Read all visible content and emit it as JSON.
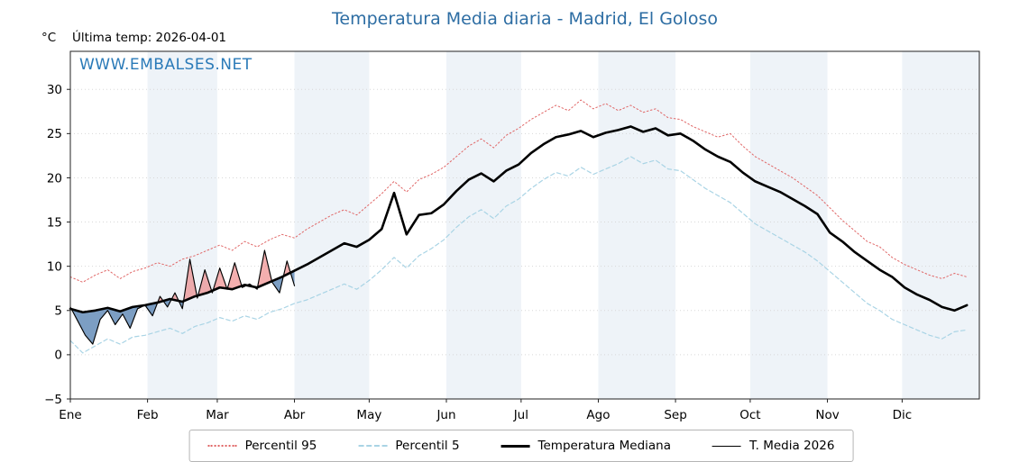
{
  "header": {
    "title": "Temperatura Media diaria - Madrid, El Goloso",
    "title_color": "#2d6da3",
    "unit_label": "°C",
    "last_temp_label": "Última temp: 2026-04-01"
  },
  "watermark": {
    "text": "WWW.EMBALSES.NET",
    "color": "#2a7ab8"
  },
  "legend": {
    "items": [
      {
        "label": "Percentil 95"
      },
      {
        "label": "Percentil 5"
      },
      {
        "label": "Temperatura Mediana"
      },
      {
        "label": "T. Media 2026"
      }
    ]
  },
  "chart_data": {
    "type": "line",
    "title": "Temperatura Media diaria - Madrid, El Goloso",
    "xlabel": "",
    "ylabel": "°C",
    "xlim": [
      1,
      366
    ],
    "ylim": [
      -5,
      34.3
    ],
    "yticks": [
      -5,
      0,
      5,
      10,
      15,
      20,
      25,
      30
    ],
    "ytick_labels": [
      "−5",
      "0",
      "5",
      "10",
      "15",
      "20",
      "25",
      "30"
    ],
    "month_labels": [
      "Ene",
      "Feb",
      "Mar",
      "Abr",
      "May",
      "Jun",
      "Jul",
      "Ago",
      "Sep",
      "Oct",
      "Nov",
      "Dic"
    ],
    "month_start_days": [
      1,
      32,
      60,
      91,
      121,
      152,
      182,
      213,
      244,
      274,
      305,
      335
    ],
    "shaded_month_indices": [
      1,
      3,
      5,
      7,
      9,
      11
    ],
    "band_color": "#eef3f8",
    "grid_color": "#d8d8d8",
    "fill_above_color": "rgba(235,110,110,0.55)",
    "fill_below_color": "rgba(80,125,175,0.75)",
    "x_days": [
      1,
      6,
      11,
      16,
      21,
      26,
      31,
      36,
      41,
      46,
      51,
      56,
      61,
      66,
      71,
      76,
      81,
      86,
      91,
      96,
      101,
      106,
      111,
      116,
      121,
      126,
      131,
      136,
      141,
      146,
      151,
      156,
      161,
      166,
      171,
      176,
      181,
      186,
      191,
      196,
      201,
      206,
      211,
      216,
      221,
      226,
      231,
      236,
      241,
      246,
      251,
      256,
      261,
      266,
      271,
      276,
      281,
      286,
      291,
      296,
      301,
      306,
      311,
      316,
      321,
      326,
      331,
      336,
      341,
      346,
      351,
      356,
      361
    ],
    "series": [
      {
        "name": "Percentil 95",
        "style": "dotted",
        "color": "#e06666",
        "values": [
          8.8,
          8.2,
          9.0,
          9.6,
          8.6,
          9.4,
          9.8,
          10.4,
          10.0,
          10.8,
          11.2,
          11.8,
          12.4,
          11.8,
          12.8,
          12.2,
          13.0,
          13.6,
          13.2,
          14.2,
          15.0,
          15.8,
          16.4,
          15.8,
          17.0,
          18.2,
          19.6,
          18.4,
          19.8,
          20.4,
          21.2,
          22.4,
          23.6,
          24.4,
          23.4,
          24.8,
          25.6,
          26.6,
          27.4,
          28.2,
          27.6,
          28.8,
          27.8,
          28.4,
          27.6,
          28.2,
          27.4,
          27.8,
          26.8,
          26.6,
          25.8,
          25.2,
          24.6,
          25.0,
          23.6,
          22.4,
          21.6,
          20.8,
          20.0,
          19.0,
          18.0,
          16.6,
          15.2,
          14.0,
          12.8,
          12.2,
          11.0,
          10.2,
          9.6,
          9.0,
          8.6,
          9.2,
          8.8
        ]
      },
      {
        "name": "Percentil 5",
        "style": "dashed",
        "color": "#a9d4e5",
        "values": [
          1.6,
          0.2,
          1.0,
          1.8,
          1.2,
          2.0,
          2.2,
          2.6,
          3.0,
          2.4,
          3.2,
          3.6,
          4.2,
          3.8,
          4.4,
          4.0,
          4.8,
          5.2,
          5.8,
          6.2,
          6.8,
          7.4,
          8.0,
          7.4,
          8.4,
          9.6,
          11.0,
          9.8,
          11.2,
          12.0,
          13.0,
          14.4,
          15.6,
          16.4,
          15.4,
          16.8,
          17.6,
          18.8,
          19.8,
          20.6,
          20.2,
          21.2,
          20.4,
          21.0,
          21.6,
          22.4,
          21.6,
          22.0,
          21.0,
          20.8,
          19.8,
          18.8,
          18.0,
          17.2,
          16.0,
          14.8,
          14.0,
          13.2,
          12.4,
          11.6,
          10.6,
          9.4,
          8.2,
          7.0,
          5.8,
          5.0,
          4.0,
          3.4,
          2.8,
          2.2,
          1.8,
          2.6,
          2.8
        ]
      },
      {
        "name": "Temperatura Mediana",
        "style": "solid-thick",
        "color": "#000000",
        "values": [
          5.2,
          4.8,
          5.0,
          5.3,
          4.9,
          5.4,
          5.6,
          5.9,
          6.3,
          6.0,
          6.6,
          7.0,
          7.6,
          7.4,
          7.9,
          7.6,
          8.2,
          8.8,
          9.5,
          10.2,
          11.0,
          11.8,
          12.6,
          12.2,
          13.0,
          14.2,
          18.3,
          13.6,
          15.8,
          16.0,
          17.0,
          18.5,
          19.8,
          20.5,
          19.6,
          20.8,
          21.5,
          22.8,
          23.8,
          24.6,
          24.9,
          25.3,
          24.6,
          25.1,
          25.4,
          25.8,
          25.2,
          25.6,
          24.8,
          25.0,
          24.2,
          23.2,
          22.4,
          21.8,
          20.6,
          19.6,
          19.0,
          18.4,
          17.6,
          16.8,
          15.9,
          13.8,
          12.8,
          11.6,
          10.6,
          9.6,
          8.8,
          7.6,
          6.8,
          6.2,
          5.4,
          5.0,
          5.6
        ]
      },
      {
        "name": "T. Media 2026",
        "style": "solid-thin",
        "color": "#000000",
        "x": [
          1,
          4,
          7,
          10,
          13,
          16,
          19,
          22,
          25,
          28,
          31,
          34,
          37,
          40,
          43,
          46,
          49,
          52,
          55,
          58,
          61,
          64,
          67,
          70,
          73,
          76,
          79,
          82,
          85,
          88,
          91
        ],
        "values": [
          5.4,
          3.8,
          2.2,
          1.2,
          4.0,
          5.0,
          3.4,
          4.6,
          3.0,
          5.2,
          5.6,
          4.4,
          6.6,
          5.4,
          7.0,
          5.2,
          10.8,
          6.4,
          9.6,
          7.0,
          9.8,
          7.4,
          10.4,
          7.6,
          8.0,
          7.4,
          11.8,
          8.2,
          7.0,
          10.6,
          7.8
        ]
      }
    ]
  }
}
